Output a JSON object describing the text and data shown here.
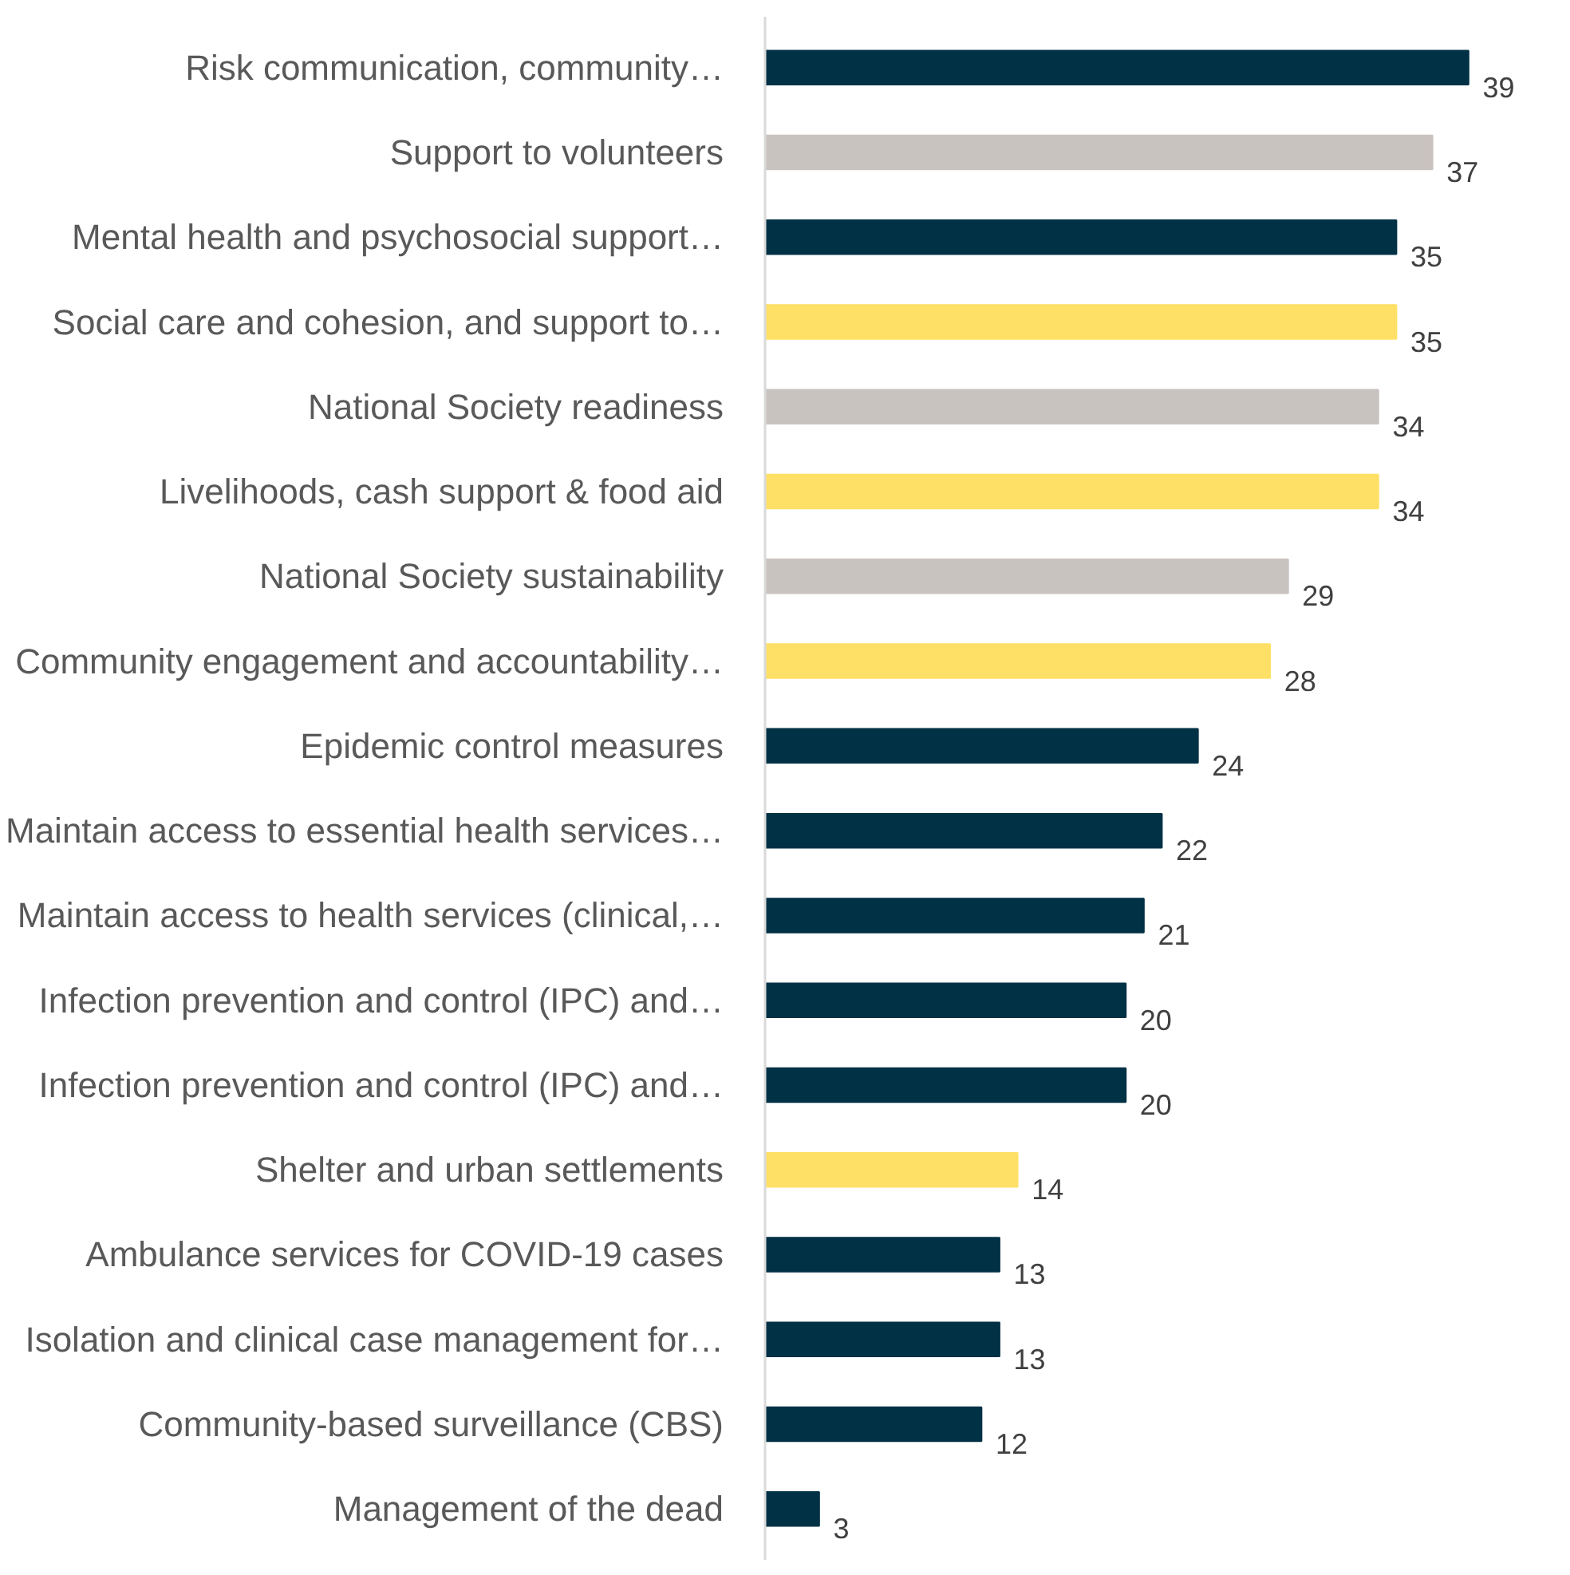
{
  "chart_data": {
    "type": "bar",
    "orientation": "horizontal",
    "categories": [
      "Risk communication, community…",
      "Support to volunteers",
      "Mental health and psychosocial support…",
      "Social care and cohesion, and support to…",
      "National Society readiness",
      "Livelihoods, cash support & food aid",
      "National Society sustainability",
      "Community engagement and accountability…",
      "Epidemic control measures",
      "Maintain access to essential health services…",
      "Maintain access to health services (clinical,…",
      "Infection prevention and control (IPC) and…",
      "Infection prevention and control (IPC) and…",
      "Shelter and urban settlements",
      "Ambulance services for COVID-19 cases",
      "Isolation and clinical case management for…",
      "Community-based surveillance (CBS)",
      "Management of the dead"
    ],
    "values": [
      39,
      37,
      35,
      35,
      34,
      34,
      29,
      28,
      24,
      22,
      21,
      20,
      20,
      14,
      13,
      13,
      12,
      3
    ],
    "colors": [
      "#003145",
      "#c9c3c0",
      "#003145",
      "#ffe066",
      "#c9c3c0",
      "#ffe066",
      "#c9c3c0",
      "#ffe066",
      "#003145",
      "#003145",
      "#003145",
      "#003145",
      "#003145",
      "#ffe066",
      "#003145",
      "#003145",
      "#003145",
      "#003145"
    ],
    "data_labels": true
  }
}
